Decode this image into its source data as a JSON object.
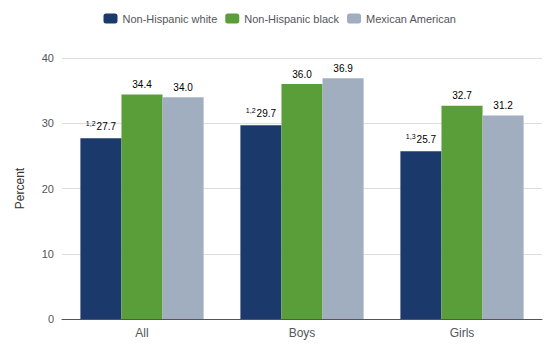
{
  "chart_data": {
    "type": "bar",
    "categories": [
      "All",
      "Boys",
      "Girls"
    ],
    "series": [
      {
        "name": "Non-Hispanic white",
        "color": "#1b3a6b",
        "values": [
          27.7,
          29.7,
          25.7
        ],
        "value_labels": [
          "27.7",
          "29.7",
          "25.7"
        ],
        "label_notes": [
          "1,2",
          "1,2",
          "1,3"
        ]
      },
      {
        "name": "Non-Hispanic black",
        "color": "#5a9e3a",
        "values": [
          34.4,
          36.0,
          32.7
        ],
        "value_labels": [
          "34.4",
          "36.0",
          "32.7"
        ]
      },
      {
        "name": "Mexican American",
        "color": "#a0aec0",
        "values": [
          34.0,
          36.9,
          31.2
        ],
        "value_labels": [
          "34.0",
          "36.9",
          "31.2"
        ]
      }
    ],
    "ylabel": "Percent",
    "ylim": [
      0,
      40
    ],
    "yticks": [
      0,
      10,
      20,
      30,
      40
    ],
    "grid": true,
    "legend": "top",
    "data_labels": true
  }
}
